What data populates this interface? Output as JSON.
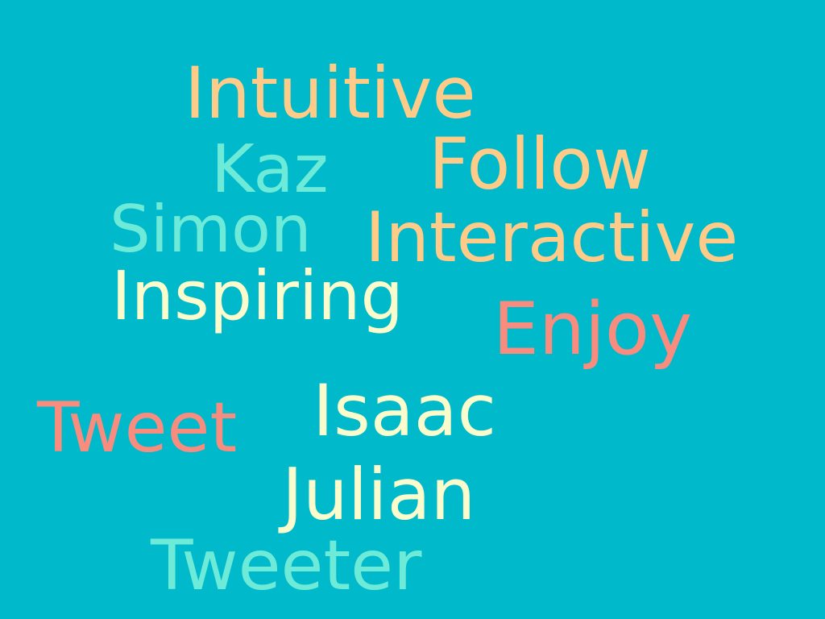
{
  "colors": {
    "background": "#00BACB",
    "orange": "#FECB88",
    "mint": "#6EEBD8",
    "cream": "#FBFCCB",
    "salmon": "#F88C7F"
  },
  "words": {
    "intuitive": "Intuitive",
    "kaz": "Kaz",
    "follow": "Follow",
    "simon": "Simon",
    "interactive": "Interactive",
    "inspiring": "Inspiring",
    "enjoy": "Enjoy",
    "tweet": "Tweet",
    "isaac": "Isaac",
    "julian": "Julian",
    "tweeter": "Tweeter"
  },
  "word_colors": {
    "intuitive": "#FECB88",
    "kaz": "#6EEBD8",
    "follow": "#FECB88",
    "simon": "#6EEBD8",
    "interactive": "#FECB88",
    "inspiring": "#FBFCCB",
    "enjoy": "#F88C7F",
    "tweet": "#F88C7F",
    "isaac": "#FBFCCB",
    "julian": "#FBFCCB",
    "tweeter": "#6EEBD8"
  }
}
